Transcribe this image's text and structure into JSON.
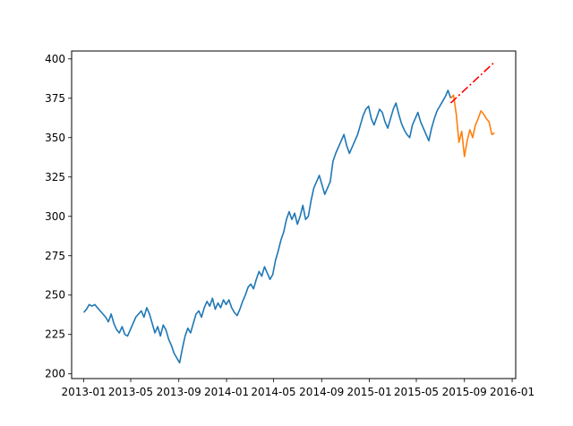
{
  "chart_data": {
    "type": "line",
    "title": "",
    "xlabel": "",
    "ylabel": "",
    "grid": false,
    "legend": "none",
    "xlim": [
      "2012-12-01",
      "2016-01-10"
    ],
    "ylim": [
      197,
      405
    ],
    "x_ticks": [
      "2013-01",
      "2013-05",
      "2013-09",
      "2014-01",
      "2014-05",
      "2014-09",
      "2015-01",
      "2015-05",
      "2015-09",
      "2016-01"
    ],
    "y_ticks": [
      200,
      225,
      250,
      275,
      300,
      325,
      350,
      375,
      400
    ],
    "series": [
      {
        "color": "#1f77b4",
        "style": "solid",
        "points": [
          [
            "2013-01-01",
            239
          ],
          [
            "2013-01-08",
            241
          ],
          [
            "2013-01-15",
            244
          ],
          [
            "2013-01-22",
            243
          ],
          [
            "2013-01-29",
            244
          ],
          [
            "2013-02-05",
            242
          ],
          [
            "2013-02-12",
            240
          ],
          [
            "2013-02-19",
            238
          ],
          [
            "2013-02-26",
            236
          ],
          [
            "2013-03-05",
            233
          ],
          [
            "2013-03-12",
            238
          ],
          [
            "2013-03-19",
            232
          ],
          [
            "2013-03-26",
            228
          ],
          [
            "2013-04-02",
            226
          ],
          [
            "2013-04-09",
            230
          ],
          [
            "2013-04-16",
            225
          ],
          [
            "2013-04-23",
            224
          ],
          [
            "2013-04-30",
            228
          ],
          [
            "2013-05-07",
            232
          ],
          [
            "2013-05-14",
            236
          ],
          [
            "2013-05-21",
            238
          ],
          [
            "2013-05-28",
            240
          ],
          [
            "2013-06-04",
            236
          ],
          [
            "2013-06-11",
            242
          ],
          [
            "2013-06-18",
            238
          ],
          [
            "2013-06-25",
            232
          ],
          [
            "2013-07-02",
            226
          ],
          [
            "2013-07-09",
            230
          ],
          [
            "2013-07-16",
            224
          ],
          [
            "2013-07-23",
            231
          ],
          [
            "2013-07-30",
            228
          ],
          [
            "2013-08-06",
            222
          ],
          [
            "2013-08-13",
            218
          ],
          [
            "2013-08-20",
            213
          ],
          [
            "2013-08-27",
            210
          ],
          [
            "2013-09-03",
            207
          ],
          [
            "2013-09-10",
            216
          ],
          [
            "2013-09-17",
            224
          ],
          [
            "2013-09-24",
            229
          ],
          [
            "2013-10-01",
            226
          ],
          [
            "2013-10-08",
            232
          ],
          [
            "2013-10-15",
            238
          ],
          [
            "2013-10-22",
            240
          ],
          [
            "2013-10-29",
            236
          ],
          [
            "2013-11-05",
            242
          ],
          [
            "2013-11-12",
            246
          ],
          [
            "2013-11-19",
            243
          ],
          [
            "2013-11-26",
            248
          ],
          [
            "2013-12-03",
            241
          ],
          [
            "2013-12-10",
            245
          ],
          [
            "2013-12-17",
            242
          ],
          [
            "2013-12-24",
            247
          ],
          [
            "2013-12-31",
            244
          ],
          [
            "2014-01-07",
            247
          ],
          [
            "2014-01-14",
            242
          ],
          [
            "2014-01-21",
            239
          ],
          [
            "2014-01-28",
            237
          ],
          [
            "2014-02-04",
            241
          ],
          [
            "2014-02-11",
            246
          ],
          [
            "2014-02-18",
            250
          ],
          [
            "2014-02-25",
            255
          ],
          [
            "2014-03-04",
            257
          ],
          [
            "2014-03-11",
            254
          ],
          [
            "2014-03-18",
            260
          ],
          [
            "2014-03-25",
            265
          ],
          [
            "2014-04-01",
            262
          ],
          [
            "2014-04-08",
            268
          ],
          [
            "2014-04-15",
            264
          ],
          [
            "2014-04-22",
            260
          ],
          [
            "2014-04-29",
            263
          ],
          [
            "2014-05-06",
            272
          ],
          [
            "2014-05-13",
            278
          ],
          [
            "2014-05-20",
            285
          ],
          [
            "2014-05-27",
            290
          ],
          [
            "2014-06-03",
            298
          ],
          [
            "2014-06-10",
            303
          ],
          [
            "2014-06-17",
            298
          ],
          [
            "2014-06-24",
            302
          ],
          [
            "2014-07-01",
            295
          ],
          [
            "2014-07-08",
            300
          ],
          [
            "2014-07-15",
            307
          ],
          [
            "2014-07-22",
            298
          ],
          [
            "2014-07-29",
            300
          ],
          [
            "2014-08-05",
            310
          ],
          [
            "2014-08-12",
            318
          ],
          [
            "2014-08-19",
            322
          ],
          [
            "2014-08-26",
            326
          ],
          [
            "2014-09-02",
            320
          ],
          [
            "2014-09-09",
            314
          ],
          [
            "2014-09-16",
            318
          ],
          [
            "2014-09-23",
            322
          ],
          [
            "2014-09-30",
            335
          ],
          [
            "2014-10-07",
            340
          ],
          [
            "2014-10-14",
            344
          ],
          [
            "2014-10-21",
            348
          ],
          [
            "2014-10-28",
            352
          ],
          [
            "2014-11-04",
            345
          ],
          [
            "2014-11-11",
            340
          ],
          [
            "2014-11-18",
            344
          ],
          [
            "2014-11-25",
            348
          ],
          [
            "2014-12-02",
            352
          ],
          [
            "2014-12-09",
            358
          ],
          [
            "2014-12-16",
            364
          ],
          [
            "2014-12-23",
            368
          ],
          [
            "2014-12-30",
            370
          ],
          [
            "2015-01-06",
            362
          ],
          [
            "2015-01-13",
            358
          ],
          [
            "2015-01-20",
            363
          ],
          [
            "2015-01-27",
            368
          ],
          [
            "2015-02-03",
            366
          ],
          [
            "2015-02-10",
            360
          ],
          [
            "2015-02-17",
            356
          ],
          [
            "2015-02-24",
            362
          ],
          [
            "2015-03-03",
            368
          ],
          [
            "2015-03-10",
            372
          ],
          [
            "2015-03-17",
            365
          ],
          [
            "2015-03-24",
            359
          ],
          [
            "2015-03-31",
            355
          ],
          [
            "2015-04-07",
            352
          ],
          [
            "2015-04-14",
            350
          ],
          [
            "2015-04-21",
            358
          ],
          [
            "2015-04-28",
            362
          ],
          [
            "2015-05-05",
            366
          ],
          [
            "2015-05-12",
            360
          ],
          [
            "2015-05-19",
            356
          ],
          [
            "2015-05-26",
            352
          ],
          [
            "2015-06-02",
            348
          ],
          [
            "2015-06-09",
            356
          ],
          [
            "2015-06-16",
            362
          ],
          [
            "2015-06-23",
            367
          ],
          [
            "2015-06-30",
            370
          ],
          [
            "2015-07-07",
            373
          ],
          [
            "2015-07-14",
            376
          ],
          [
            "2015-07-21",
            380
          ],
          [
            "2015-07-28",
            375
          ]
        ]
      },
      {
        "color": "#ff7f0e",
        "style": "solid",
        "points": [
          [
            "2015-07-28",
            375
          ],
          [
            "2015-08-04",
            377
          ],
          [
            "2015-08-11",
            365
          ],
          [
            "2015-08-18",
            347
          ],
          [
            "2015-08-25",
            354
          ],
          [
            "2015-09-01",
            338
          ],
          [
            "2015-09-08",
            348
          ],
          [
            "2015-09-15",
            355
          ],
          [
            "2015-09-22",
            350
          ],
          [
            "2015-09-29",
            358
          ],
          [
            "2015-10-06",
            362
          ],
          [
            "2015-10-13",
            367
          ],
          [
            "2015-10-20",
            365
          ],
          [
            "2015-10-27",
            362
          ],
          [
            "2015-11-03",
            360
          ],
          [
            "2015-11-10",
            352
          ],
          [
            "2015-11-17",
            353
          ]
        ]
      },
      {
        "color": "#ff0000",
        "style": "dashdot",
        "points": [
          [
            "2015-07-28",
            372
          ],
          [
            "2015-11-17",
            398
          ]
        ]
      }
    ]
  }
}
